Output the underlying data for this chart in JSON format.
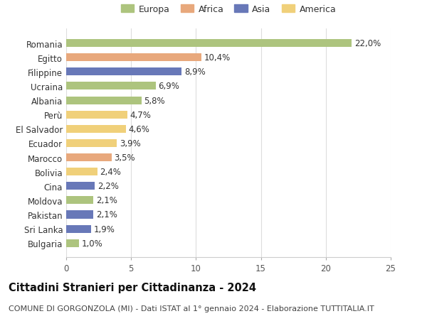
{
  "categories": [
    "Romania",
    "Egitto",
    "Filippine",
    "Ucraina",
    "Albania",
    "Perù",
    "El Salvador",
    "Ecuador",
    "Marocco",
    "Bolivia",
    "Cina",
    "Moldova",
    "Pakistan",
    "Sri Lanka",
    "Bulgaria"
  ],
  "values": [
    22.0,
    10.4,
    8.9,
    6.9,
    5.8,
    4.7,
    4.6,
    3.9,
    3.5,
    2.4,
    2.2,
    2.1,
    2.1,
    1.9,
    1.0
  ],
  "labels": [
    "22,0%",
    "10,4%",
    "8,9%",
    "6,9%",
    "5,8%",
    "4,7%",
    "4,6%",
    "3,9%",
    "3,5%",
    "2,4%",
    "2,2%",
    "2,1%",
    "2,1%",
    "1,9%",
    "1,0%"
  ],
  "continents": [
    "Europa",
    "Africa",
    "Asia",
    "Europa",
    "Europa",
    "America",
    "America",
    "America",
    "Africa",
    "America",
    "Asia",
    "Europa",
    "Asia",
    "Asia",
    "Europa"
  ],
  "continent_colors": {
    "Europa": "#adc47e",
    "Africa": "#e8a87c",
    "Asia": "#6878b8",
    "America": "#f0d07a"
  },
  "legend_order": [
    "Europa",
    "Africa",
    "Asia",
    "America"
  ],
  "title": "Cittadini Stranieri per Cittadinanza - 2024",
  "subtitle": "COMUNE DI GORGONZOLA (MI) - Dati ISTAT al 1° gennaio 2024 - Elaborazione TUTTITALIA.IT",
  "xlim": [
    0,
    25
  ],
  "xticks": [
    0,
    5,
    10,
    15,
    20,
    25
  ],
  "background_color": "#ffffff",
  "grid_color": "#dddddd",
  "bar_height": 0.55,
  "label_fontsize": 8.5,
  "title_fontsize": 10.5,
  "subtitle_fontsize": 8,
  "tick_fontsize": 8.5,
  "legend_fontsize": 9
}
